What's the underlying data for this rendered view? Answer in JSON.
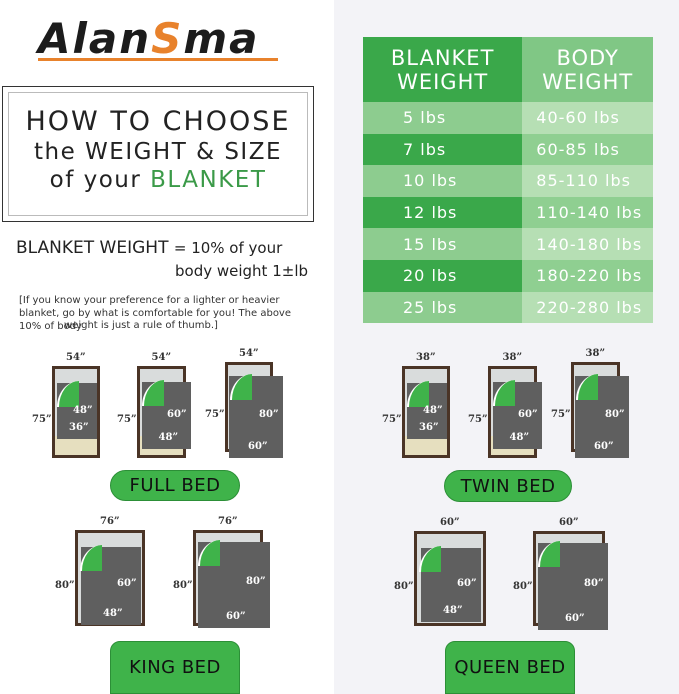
{
  "brand": {
    "logo_pre": "Alan",
    "logo_s": "S",
    "logo_post": "ma",
    "logo_text": "Alansma",
    "accent": "#e8822c"
  },
  "title": {
    "line1": "HOW TO CHOOSE",
    "line2": "the WEIGHT & SIZE",
    "line3_pre": "of your",
    "line3_accent": "BLANKET"
  },
  "formula": {
    "label": "BLANKET WEIGHT",
    "rest": "= 10% of your",
    "line2": "body weight  1±lb"
  },
  "note": {
    "line1": "[If you know your preference for a lighter or heavier blanket, go by what is comfortable for you! The above 10% of body",
    "line2": "weight is just a rule of thumb.]"
  },
  "weight_table": {
    "headers": [
      "BLANKET WEIGHT",
      "BODY WEIGHT"
    ],
    "rows": [
      [
        "5 lbs",
        "40-60 lbs"
      ],
      [
        "7 lbs",
        "60-85 lbs"
      ],
      [
        "10 lbs",
        "85-110 lbs"
      ],
      [
        "12 lbs",
        "110-140 lbs"
      ],
      [
        "15 lbs",
        "140-180 lbs"
      ],
      [
        "20 lbs",
        "180-220 lbs"
      ],
      [
        "25 lbs",
        "220-280 lbs"
      ]
    ],
    "colors": {
      "dark": "#3aa84a",
      "light_left": "#8dcc8f",
      "light_right": "#b6dfb4",
      "mid_right": "#8fcf91",
      "header_right": "#80c785"
    }
  },
  "beds": {
    "full": {
      "label": "FULL BED",
      "bed_width": "54”",
      "bed_length": "75”",
      "blankets": [
        [
          "48”",
          "36”"
        ],
        [
          "60”",
          "48”"
        ],
        [
          "80”",
          "60”"
        ]
      ]
    },
    "twin": {
      "label": "TWIN BED",
      "bed_width": "38”",
      "bed_length": "75”",
      "blankets": [
        [
          "48”",
          "36”"
        ],
        [
          "60”",
          "48”"
        ],
        [
          "80”",
          "60”"
        ]
      ]
    },
    "king": {
      "label": "KING BED",
      "bed_width": "76”",
      "bed_length": "80”",
      "blankets": [
        [
          "60”",
          "48”"
        ],
        [
          "80”",
          "60”"
        ]
      ]
    },
    "queen": {
      "label": "QUEEN BED",
      "bed_width": "60”",
      "bed_length": "80”",
      "blankets": [
        [
          "60”",
          "48”"
        ],
        [
          "80”",
          "60”"
        ]
      ]
    }
  }
}
